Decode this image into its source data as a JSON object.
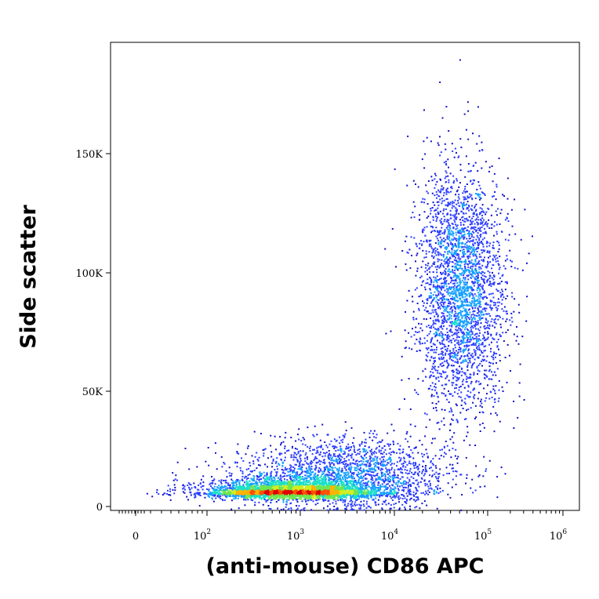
{
  "chart_data": {
    "type": "scatter",
    "style": "density-colored flow cytometry dot plot",
    "xlabel": "(anti-mouse) CD86 APC",
    "ylabel": "Side scatter",
    "x_scale": "biexponential (log with linear region near 0)",
    "y_scale": "linear",
    "xlim": [
      -60,
      1000000
    ],
    "ylim": [
      -2000,
      195000
    ],
    "x_ticks": [
      {
        "value": 0,
        "base": "0",
        "exp": ""
      },
      {
        "value": 100,
        "base": "10",
        "exp": "2"
      },
      {
        "value": 1000,
        "base": "10",
        "exp": "3"
      },
      {
        "value": 10000,
        "base": "10",
        "exp": "4"
      },
      {
        "value": 100000,
        "base": "10",
        "exp": "5"
      },
      {
        "value": 1000000,
        "base": "10",
        "exp": "6"
      }
    ],
    "y_ticks": [
      {
        "value": 0,
        "label": "0"
      },
      {
        "value": 50000,
        "label": "50K"
      },
      {
        "value": 100000,
        "label": "100K"
      },
      {
        "value": 150000,
        "label": "150K"
      }
    ],
    "grid": false,
    "density_colors": [
      "#1010c8",
      "#2a3cff",
      "#14a0ff",
      "#19e0c8",
      "#6ee650",
      "#d2ee1e",
      "#ffb400",
      "#ff5000",
      "#dc0000"
    ],
    "populations": [
      {
        "description": "low side-scatter cluster",
        "x_center": 800,
        "y_center": 6500,
        "x_log_spread": 0.45,
        "y_spread": 3500,
        "relative_count": 0.45
      },
      {
        "description": "dim tail",
        "x_center": 3000,
        "y_center": 14000,
        "x_log_spread": 0.55,
        "y_spread": 8000,
        "relative_count": 0.22
      },
      {
        "description": "high side-scatter CD86+ cluster",
        "x_center": 50000,
        "y_center": 92000,
        "x_log_spread": 0.23,
        "y_spread": 26000,
        "relative_count": 0.33
      }
    ]
  }
}
